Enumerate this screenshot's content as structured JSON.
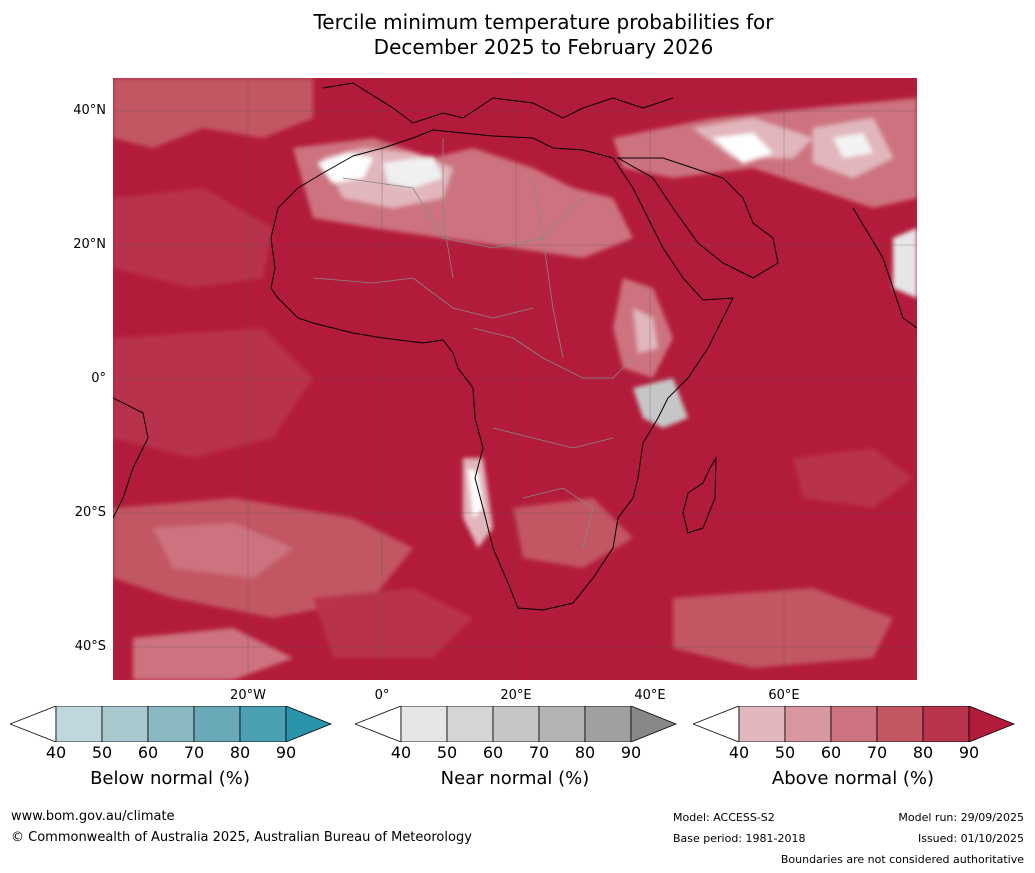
{
  "title": {
    "line1": "Tercile minimum temperature probabilities for",
    "line2": "December 2025 to February 2026"
  },
  "axes": {
    "latitudes": [
      "40°N",
      "20°N",
      "0°",
      "20°S",
      "40°S"
    ],
    "longitudes": [
      "20°W",
      "0°",
      "20°E",
      "40°E",
      "60°E"
    ]
  },
  "colorbars": [
    {
      "label": "Below normal (%)",
      "ticks": [
        "40",
        "50",
        "60",
        "70",
        "80",
        "90"
      ],
      "colors": [
        "#ffffff",
        "#c0d7de",
        "#a8c8ce",
        "#8ab8c3",
        "#6aa9b7",
        "#4aa0b2",
        "#2a94ab"
      ]
    },
    {
      "label": "Near normal (%)",
      "ticks": [
        "40",
        "50",
        "60",
        "70",
        "80",
        "90"
      ],
      "colors": [
        "#ffffff",
        "#e6e6e6",
        "#d5d5d5",
        "#c6c6c6",
        "#b3b3b3",
        "#a0a0a0",
        "#888888"
      ]
    },
    {
      "label": "Above normal (%)",
      "ticks": [
        "40",
        "50",
        "60",
        "70",
        "80",
        "90"
      ],
      "colors": [
        "#ffffff",
        "#e2b6bd",
        "#d898a1",
        "#cd737f",
        "#c25663",
        "#b8334c",
        "#b31b3a"
      ]
    }
  ],
  "footer": {
    "website": "www.bom.gov.au/climate",
    "copyright": "© Commonwealth of Australia 2025, Australian Bureau of Meteorology",
    "model": "Model: ACCESS-S2",
    "base_period": "Base period: 1981-2018",
    "model_run": "Model run: 29/09/2025",
    "issued": "Issued: 01/10/2025",
    "disclaimer": "Boundaries are not considered authoritative"
  }
}
